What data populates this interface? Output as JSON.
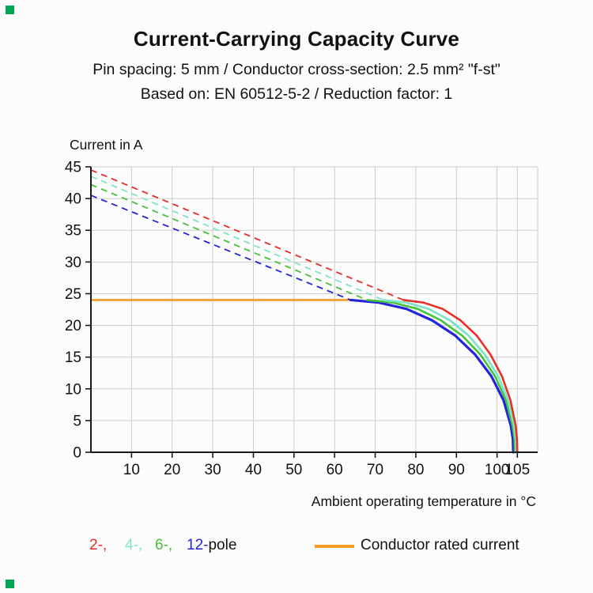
{
  "page": {
    "background": "#fcfcfc",
    "accent": "#00a651"
  },
  "header": {
    "title": "Current-Carrying Capacity Curve",
    "subtitle1": "Pin spacing: 5 mm / Conductor cross-section: 2.5 mm² \"f-st\"",
    "subtitle2": "Based on: EN 60512-5-2 / Reduction factor: 1"
  },
  "chart_data": {
    "type": "line",
    "title": "Current-Carrying Capacity Curve",
    "xlabel": "Ambient operating temperature in °C",
    "ylabel": "Current in A",
    "xlim": [
      0,
      110
    ],
    "ylim": [
      0,
      45
    ],
    "x_ticks": [
      10,
      20,
      30,
      40,
      50,
      60,
      70,
      80,
      90,
      100,
      105
    ],
    "y_ticks": [
      0,
      5,
      10,
      15,
      20,
      25,
      30,
      35,
      40,
      45
    ],
    "x_gridlines": [
      10,
      20,
      30,
      40,
      50,
      60,
      70,
      80,
      90,
      100,
      105
    ],
    "grid": true,
    "grid_color": "#cccccc",
    "axis_color": "#1a1a1a",
    "legend_position": "bottom",
    "rated_current": {
      "label": "Conductor rated current",
      "value": 24,
      "x_start": 0,
      "x_end": 64,
      "color": "#f59b22"
    },
    "series": [
      {
        "name": "12-pole",
        "color": "#2524d8",
        "width": 3.2,
        "dashed_points": [
          [
            0,
            40.5
          ],
          [
            64,
            24
          ]
        ],
        "solid_points": [
          [
            64,
            24
          ],
          [
            70.9,
            23.6
          ],
          [
            77.7,
            22.6
          ],
          [
            84,
            20.8
          ],
          [
            89.7,
            18.4
          ],
          [
            94.6,
            15.4
          ],
          [
            98.6,
            12
          ],
          [
            101.6,
            8.2
          ],
          [
            103.4,
            4.2
          ],
          [
            103.9,
            2.1
          ],
          [
            104,
            0
          ]
        ]
      },
      {
        "name": "6-pole",
        "color": "#46c13a",
        "width": 2.6,
        "dashed_points": [
          [
            0,
            42.2
          ],
          [
            68,
            24
          ]
        ],
        "solid_points": [
          [
            68,
            24
          ],
          [
            74.3,
            23.6
          ],
          [
            80.5,
            22.6
          ],
          [
            86.2,
            20.8
          ],
          [
            91.4,
            18.4
          ],
          [
            95.9,
            15.4
          ],
          [
            99.5,
            12
          ],
          [
            102.2,
            8.2
          ],
          [
            103.8,
            4.2
          ],
          [
            104.3,
            2.1
          ],
          [
            104.4,
            0
          ]
        ]
      },
      {
        "name": "4-pole",
        "color": "#7fe3c6",
        "width": 2.8,
        "dashed_points": [
          [
            0,
            43.5
          ],
          [
            72,
            24
          ]
        ],
        "solid_points": [
          [
            72,
            24
          ],
          [
            77.7,
            23.6
          ],
          [
            83.2,
            22.6
          ],
          [
            88.4,
            20.8
          ],
          [
            93,
            18.4
          ],
          [
            97,
            15.4
          ],
          [
            100.3,
            12
          ],
          [
            102.7,
            8.2
          ],
          [
            104.2,
            4.2
          ],
          [
            104.6,
            2.1
          ],
          [
            104.7,
            0
          ]
        ]
      },
      {
        "name": "2-pole",
        "color": "#e63027",
        "width": 2.6,
        "dashed_points": [
          [
            0,
            44.5
          ],
          [
            77,
            24
          ]
        ],
        "solid_points": [
          [
            77,
            24
          ],
          [
            81.9,
            23.6
          ],
          [
            86.6,
            22.6
          ],
          [
            91,
            20.8
          ],
          [
            95,
            18.4
          ],
          [
            98.4,
            15.4
          ],
          [
            101.2,
            12
          ],
          [
            103.3,
            8.2
          ],
          [
            104.6,
            4.2
          ],
          [
            104.9,
            2.1
          ],
          [
            105,
            0
          ]
        ]
      }
    ]
  },
  "legend": {
    "poles": [
      {
        "label": "2-,",
        "color": "#e63027"
      },
      {
        "label": "4-,",
        "color": "#7fe3c6"
      },
      {
        "label": "6-,",
        "color": "#46c13a"
      },
      {
        "label": "12-",
        "color": "#2524d8"
      }
    ],
    "pole_suffix": "pole",
    "rated": {
      "label": "Conductor rated current",
      "color": "#f59b22"
    }
  }
}
